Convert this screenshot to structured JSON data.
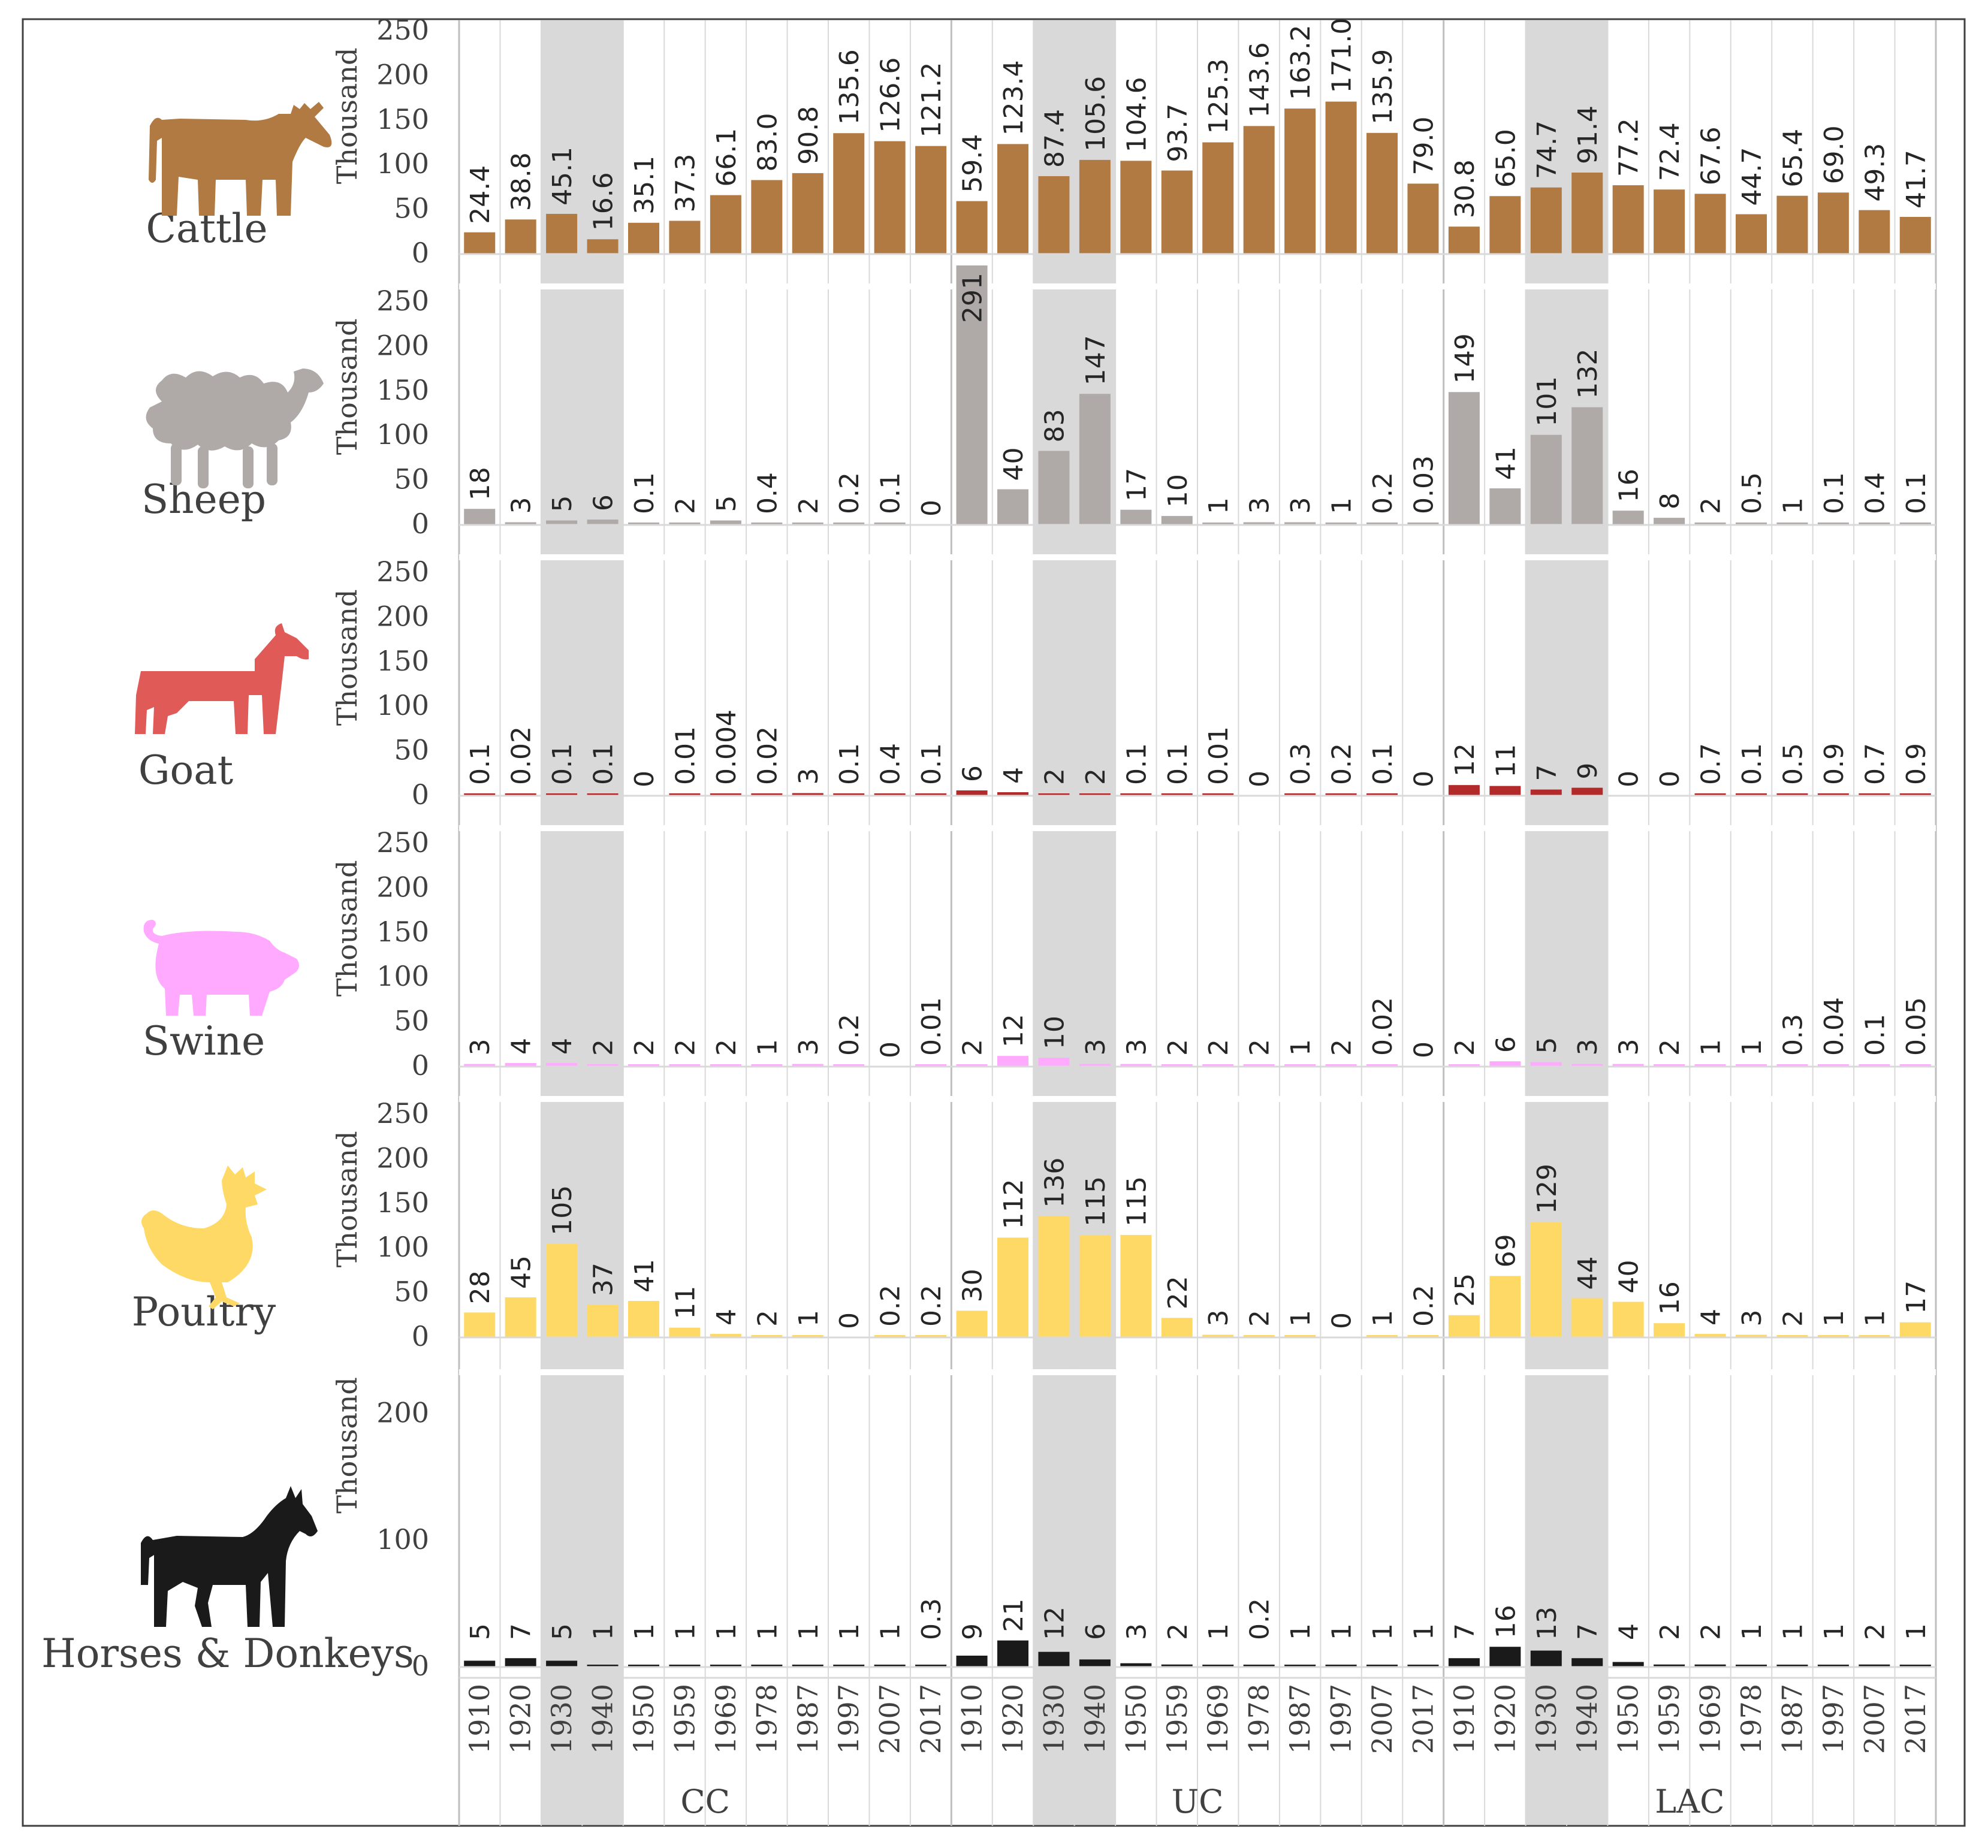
{
  "colors": {
    "cattle": "#b07a42",
    "sheep": "#afa9a7",
    "goat": "#e05a57",
    "goat_bar": "#b22a2a",
    "swine": "#ffaaff",
    "poultry": "#ffd966",
    "horses": "#1a1a1a",
    "shade": "#d9d9d9",
    "frame": "#404040",
    "grid": "#d9d9d9"
  },
  "chart_data": {
    "type": "bar",
    "ylabel": "Thousand",
    "groups": [
      "CC",
      "UC",
      "LAC"
    ],
    "years": [
      "1910",
      "1920",
      "1930",
      "1940",
      "1950",
      "1959",
      "1969",
      "1978",
      "1987",
      "1997",
      "2007",
      "2017"
    ],
    "shaded_years": [
      "1930",
      "1940"
    ],
    "panels": [
      {
        "key": "cattle",
        "name": "Cattle",
        "icon": "cow-icon",
        "ylim": [
          0,
          250
        ],
        "yticks": [
          "0",
          "50",
          "100",
          "150",
          "200",
          "250"
        ],
        "values": {
          "CC": [
            24.4,
            38.8,
            45.1,
            16.6,
            35.1,
            37.3,
            66.1,
            83.0,
            90.8,
            135.6,
            126.6,
            121.2
          ],
          "UC": [
            59.4,
            123.4,
            87.4,
            105.6,
            104.6,
            93.7,
            125.3,
            143.6,
            163.2,
            171.0,
            135.9,
            79.0
          ],
          "LAC": [
            30.8,
            65.0,
            74.7,
            91.4,
            77.2,
            72.4,
            67.6,
            44.7,
            65.4,
            69.0,
            49.3,
            41.7
          ]
        },
        "labels": {
          "CC": [
            "24.4",
            "38.8",
            "45.1",
            "16.6",
            "35.1",
            "37.3",
            "66.1",
            "83.0",
            "90.8",
            "135.6",
            "126.6",
            "121.2"
          ],
          "UC": [
            "59.4",
            "123.4",
            "87.4",
            "105.6",
            "104.6",
            "93.7",
            "125.3",
            "143.6",
            "163.2",
            "171.0",
            "135.9",
            "79.0"
          ],
          "LAC": [
            "30.8",
            "65.0",
            "74.7",
            "91.4",
            "77.2",
            "72.4",
            "67.6",
            "44.7",
            "65.4",
            "69.0",
            "49.3",
            "41.7"
          ]
        }
      },
      {
        "key": "sheep",
        "name": "Sheep",
        "icon": "sheep-icon",
        "ylim": [
          0,
          250
        ],
        "yticks": [
          "0",
          "50",
          "100",
          "150",
          "200",
          "250"
        ],
        "values": {
          "CC": [
            18,
            3,
            5,
            6,
            0.1,
            2,
            5,
            0.4,
            2,
            0.2,
            0.1,
            0
          ],
          "UC": [
            291,
            40,
            83,
            147,
            17,
            10,
            1,
            3,
            3,
            1,
            0.2,
            0.03
          ],
          "LAC": [
            149,
            41,
            101,
            132,
            16,
            8,
            2,
            0.5,
            1,
            0.1,
            0.4,
            0.1
          ]
        },
        "labels": {
          "CC": [
            "18",
            "3",
            "5",
            "6",
            "0.1",
            "2",
            "5",
            "0.4",
            "2",
            "0.2",
            "0.1",
            "0"
          ],
          "UC": [
            "291",
            "40",
            "83",
            "147",
            "17",
            "10",
            "1",
            "3",
            "3",
            "1",
            "0.2",
            "0.03"
          ],
          "LAC": [
            "149",
            "41",
            "101",
            "132",
            "16",
            "8",
            "2",
            "0.5",
            "1",
            "0.1",
            "0.4",
            "0.1"
          ]
        }
      },
      {
        "key": "goat",
        "name": "Goat",
        "icon": "goat-icon",
        "ylim": [
          0,
          250
        ],
        "yticks": [
          "0",
          "50",
          "100",
          "150",
          "200",
          "250"
        ],
        "values": {
          "CC": [
            0.1,
            0.02,
            0.1,
            0.1,
            0,
            0.01,
            0.004,
            0.02,
            3,
            0.1,
            0.4,
            0.1
          ],
          "UC": [
            6,
            4,
            2,
            2,
            0.1,
            0.1,
            0.01,
            0,
            0.3,
            0.2,
            0.1,
            0
          ],
          "LAC": [
            12,
            11,
            7,
            9,
            0,
            0,
            0.7,
            0.1,
            0.5,
            0.9,
            0.7,
            0.9
          ]
        },
        "labels": {
          "CC": [
            "0.1",
            "0.02",
            "0.1",
            "0.1",
            "0",
            "0.01",
            "0.004",
            "0.02",
            "3",
            "0.1",
            "0.4",
            "0.1"
          ],
          "UC": [
            "6",
            "4",
            "2",
            "2",
            "0.1",
            "0.1",
            "0.01",
            "0",
            "0.3",
            "0.2",
            "0.1",
            "0"
          ],
          "LAC": [
            "12",
            "11",
            "7",
            "9",
            "0",
            "0",
            "0.7",
            "0.1",
            "0.5",
            "0.9",
            "0.7",
            "0.9"
          ]
        }
      },
      {
        "key": "swine",
        "name": "Swine",
        "icon": "pig-icon",
        "ylim": [
          0,
          250
        ],
        "yticks": [
          "0",
          "50",
          "100",
          "150",
          "200",
          "250"
        ],
        "values": {
          "CC": [
            3,
            4,
            4,
            2,
            2,
            2,
            2,
            1,
            3,
            0.2,
            0,
            0.01
          ],
          "UC": [
            2,
            12,
            10,
            3,
            3,
            2,
            2,
            2,
            1,
            2,
            0.02,
            0
          ],
          "LAC": [
            2,
            6,
            5,
            3,
            3,
            2,
            1,
            1,
            0.3,
            0.04,
            0.1,
            0.05
          ]
        },
        "labels": {
          "CC": [
            "3",
            "4",
            "4",
            "2",
            "2",
            "2",
            "2",
            "1",
            "3",
            "0.2",
            "0",
            "0.01"
          ],
          "UC": [
            "2",
            "12",
            "10",
            "3",
            "3",
            "2",
            "2",
            "2",
            "1",
            "2",
            "0.02",
            "0"
          ],
          "LAC": [
            "2",
            "6",
            "5",
            "3",
            "3",
            "2",
            "1",
            "1",
            "0.3",
            "0.04",
            "0.1",
            "0.05"
          ]
        }
      },
      {
        "key": "poultry",
        "name": "Poultry",
        "icon": "chicken-icon",
        "ylim": [
          0,
          250
        ],
        "yticks": [
          "0",
          "50",
          "100",
          "150",
          "200",
          "250"
        ],
        "values": {
          "CC": [
            28,
            45,
            105,
            37,
            41,
            11,
            4,
            2,
            1,
            0,
            0.2,
            0.2
          ],
          "UC": [
            30,
            112,
            136,
            115,
            115,
            22,
            3,
            2,
            1,
            0,
            1,
            0.2
          ],
          "LAC": [
            25,
            69,
            129,
            44,
            40,
            16,
            4,
            3,
            2,
            1,
            1,
            17
          ]
        },
        "labels": {
          "CC": [
            "28",
            "45",
            "105",
            "37",
            "41",
            "11",
            "4",
            "2",
            "1",
            "0",
            "0.2",
            "0.2"
          ],
          "UC": [
            "30",
            "112",
            "136",
            "115",
            "115",
            "22",
            "3",
            "2",
            "1",
            "0",
            "1",
            "0.2"
          ],
          "LAC": [
            "25",
            "69",
            "129",
            "44",
            "40",
            "16",
            "4",
            "3",
            "2",
            "1",
            "1",
            "17"
          ]
        }
      },
      {
        "key": "horses",
        "name": "Horses & Donkeys",
        "icon": "horse-icon",
        "ylim": [
          0,
          250
        ],
        "yticks": [
          "0",
          "100",
          "200"
        ],
        "values": {
          "CC": [
            5,
            7,
            5,
            1,
            1,
            1,
            1,
            1,
            1,
            1,
            1,
            0.3
          ],
          "UC": [
            9,
            21,
            12,
            6,
            3,
            2,
            1,
            0.2,
            1,
            1,
            1,
            1
          ],
          "LAC": [
            7,
            16,
            13,
            7,
            4,
            2,
            2,
            1,
            1,
            1,
            2,
            1
          ]
        },
        "labels": {
          "CC": [
            "5",
            "7",
            "5",
            "1",
            "1",
            "1",
            "1",
            "1",
            "1",
            "1",
            "1",
            "0.3"
          ],
          "UC": [
            "9",
            "21",
            "12",
            "6",
            "3",
            "2",
            "1",
            "0.2",
            "1",
            "1",
            "1",
            "1"
          ],
          "LAC": [
            "7",
            "16",
            "13",
            "7",
            "4",
            "2",
            "2",
            "1",
            "1",
            "1",
            "2",
            "1"
          ]
        }
      }
    ]
  }
}
